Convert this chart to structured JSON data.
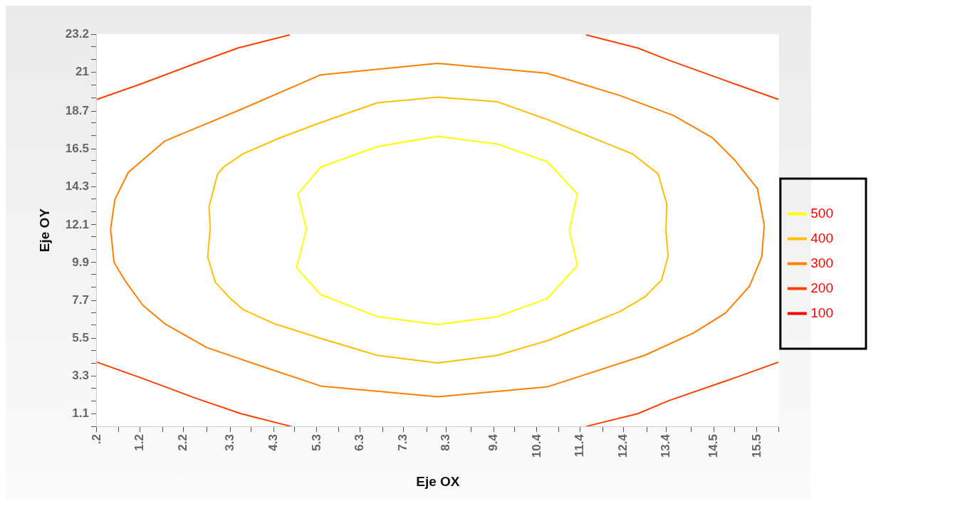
{
  "chart_data": {
    "type": "line",
    "xlabel": "Eje OX",
    "ylabel": "Eje OY",
    "legend": "right",
    "marker": "none",
    "line_style": "solid",
    "xlim": [
      0.2,
      16.01
    ],
    "ylim": [
      0.36,
      23.2
    ],
    "xticks": [
      {
        "value": 0.2,
        "label": ".2"
      },
      {
        "value": 0.71,
        "label": null
      },
      1.2,
      {
        "value": 1.73,
        "label": null
      },
      2.2,
      {
        "value": 2.75,
        "label": null
      },
      3.3,
      {
        "value": 3.77,
        "label": null
      },
      4.3,
      {
        "value": 4.79,
        "label": null
      },
      5.3,
      {
        "value": 5.81,
        "label": null
      },
      6.3,
      {
        "value": 6.83,
        "label": null
      },
      7.3,
      {
        "value": 7.85,
        "label": null
      },
      8.3,
      {
        "value": 8.87,
        "label": null
      },
      9.4,
      {
        "value": 9.89,
        "label": null
      },
      10.4,
      {
        "value": 10.91,
        "label": null
      },
      11.4,
      {
        "value": 11.93,
        "label": null
      },
      12.4,
      {
        "value": 12.95,
        "label": null
      },
      13.4,
      {
        "value": 13.97,
        "label": null
      },
      14.5,
      {
        "value": 14.99,
        "label": null
      },
      15.5,
      {
        "value": 16.01,
        "label": null
      }
    ],
    "yticks": [
      {
        "value": 0.36,
        "label": null
      },
      1.1,
      {
        "value": 1.83,
        "label": null
      },
      {
        "value": 2.57,
        "label": null
      },
      3.3,
      {
        "value": 4.04,
        "label": null
      },
      {
        "value": 4.78,
        "label": null
      },
      5.5,
      {
        "value": 6.25,
        "label": null
      },
      {
        "value": 6.99,
        "label": null
      },
      7.7,
      {
        "value": 8.46,
        "label": null
      },
      {
        "value": 9.2,
        "label": null
      },
      9.9,
      {
        "value": 10.67,
        "label": null
      },
      {
        "value": 11.41,
        "label": null
      },
      12.1,
      {
        "value": 12.88,
        "label": null
      },
      {
        "value": 13.62,
        "label": null
      },
      14.3,
      {
        "value": 15.09,
        "label": null
      },
      {
        "value": 15.83,
        "label": null
      },
      16.5,
      {
        "value": 17.3,
        "label": null
      },
      {
        "value": 18.04,
        "label": null
      },
      18.7,
      {
        "value": 19.51,
        "label": null
      },
      {
        "value": 20.25,
        "label": null
      },
      21,
      {
        "value": 21.72,
        "label": null
      },
      {
        "value": 22.46,
        "label": null
      },
      23.2
    ],
    "series": [
      {
        "name": "500",
        "color": "#ffff00",
        "x": [
          5.06,
          4.86,
          5.39,
          6.7,
          8.1,
          9.49,
          10.64,
          11.34,
          11.15,
          null,
          5.06,
          4.83,
          5.39,
          6.7,
          8.1,
          9.49,
          10.64,
          11.34,
          11.15
        ],
        "values": [
          11.84,
          13.89,
          15.46,
          16.65,
          17.25,
          16.8,
          15.77,
          13.89,
          11.75,
          null,
          11.84,
          9.6,
          8.03,
          6.75,
          6.29,
          6.75,
          7.81,
          9.73,
          11.75
        ]
      },
      {
        "name": "400",
        "color": "#ffbf00",
        "x": [
          2.83,
          2.8,
          3.0,
          3.14,
          3.58,
          4.44,
          5.39,
          6.7,
          8.1,
          9.49,
          10.64,
          12.62,
          13.21,
          13.41,
          13.39,
          null,
          2.83,
          2.77,
          2.95,
          3.26,
          3.58,
          4.32,
          5.39,
          6.7,
          8.1,
          9.49,
          10.64,
          12.33,
          12.9,
          13.29,
          13.44,
          13.39
        ],
        "values": [
          11.93,
          13.13,
          15.06,
          15.46,
          16.22,
          17.16,
          18.05,
          19.2,
          19.53,
          19.26,
          18.23,
          16.22,
          15.06,
          13.31,
          11.75,
          null,
          11.93,
          10.23,
          8.75,
          7.9,
          7.18,
          6.33,
          5.48,
          4.5,
          4.05,
          4.5,
          5.35,
          7.05,
          7.9,
          8.88,
          10.27,
          11.75
        ]
      },
      {
        "name": "300",
        "color": "#ff8000",
        "x": [
          0.52,
          0.62,
          0.93,
          1.78,
          3.58,
          5.39,
          8.1,
          10.64,
          12.33,
          13.57,
          14.47,
          15.0,
          15.51,
          15.67,
          null,
          0.52,
          0.6,
          0.88,
          1.27,
          1.78,
          2.75,
          4.16,
          5.39,
          8.1,
          10.64,
          12.9,
          14.03,
          14.77,
          15.33,
          15.61,
          15.67
        ],
        "values": [
          11.84,
          13.58,
          15.15,
          16.98,
          18.86,
          20.83,
          21.5,
          20.92,
          19.62,
          18.46,
          17.16,
          15.82,
          14.21,
          12.06,
          null,
          11.84,
          9.91,
          8.75,
          7.41,
          6.33,
          4.95,
          3.74,
          2.71,
          2.08,
          2.66,
          4.5,
          5.8,
          6.96,
          8.53,
          10.23,
          12.06
        ]
      },
      {
        "name": "200",
        "color": "#ff4000",
        "x": [
          0.2,
          1.21,
          2.45,
          3.47,
          4.67,
          null,
          0.2,
          1.21,
          2.45,
          3.54,
          4.7,
          null,
          11.54,
          12.74,
          13.46,
          15.0,
          16.0,
          null,
          11.54,
          12.74,
          13.46,
          15.0,
          16.0
        ],
        "values": [
          19.4,
          20.29,
          21.46,
          22.39,
          23.16,
          null,
          4.1,
          3.2,
          2.04,
          1.1,
          0.36,
          null,
          23.16,
          22.39,
          21.68,
          20.29,
          19.4,
          null,
          0.36,
          1.1,
          1.86,
          3.2,
          4.1
        ]
      },
      {
        "name": "100",
        "color": "#ff0000"
      }
    ]
  }
}
